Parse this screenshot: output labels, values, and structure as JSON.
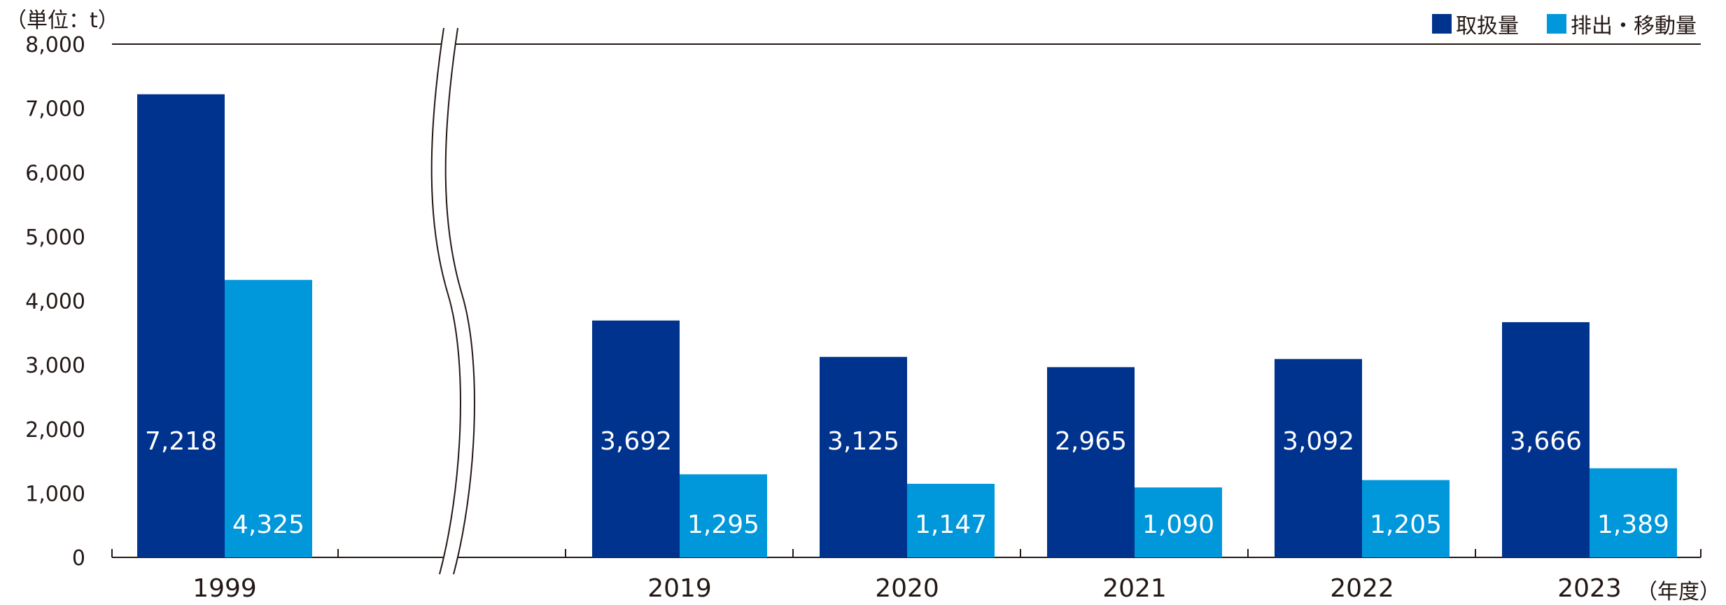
{
  "chart_data": {
    "type": "bar",
    "title": "",
    "unit_label": "（単位：t）",
    "x_unit_label": "（年度）",
    "ylim": [
      0,
      8000
    ],
    "yticks": [
      0,
      1000,
      2000,
      3000,
      4000,
      5000,
      6000,
      7000,
      8000
    ],
    "ytick_labels": [
      "0",
      "1,000",
      "2,000",
      "3,000",
      "4,000",
      "5,000",
      "6,000",
      "7,000",
      "8,000"
    ],
    "categories": [
      "1999",
      "2019",
      "2020",
      "2021",
      "2022",
      "2023"
    ],
    "axis_break_after": "1999",
    "legend_position": "top-right",
    "series": [
      {
        "name": "取扱量",
        "color": "#00338d",
        "values": [
          7218,
          3692,
          3125,
          2965,
          3092,
          3666
        ],
        "labels": [
          "7,218",
          "3,692",
          "3,125",
          "2,965",
          "3,092",
          "3,666"
        ]
      },
      {
        "name": "排出・移動量",
        "color": "#0097db",
        "values": [
          4325,
          1295,
          1147,
          1090,
          1205,
          1389
        ],
        "labels": [
          "4,325",
          "1,295",
          "1,147",
          "1,090",
          "1,205",
          "1,389"
        ]
      }
    ]
  }
}
